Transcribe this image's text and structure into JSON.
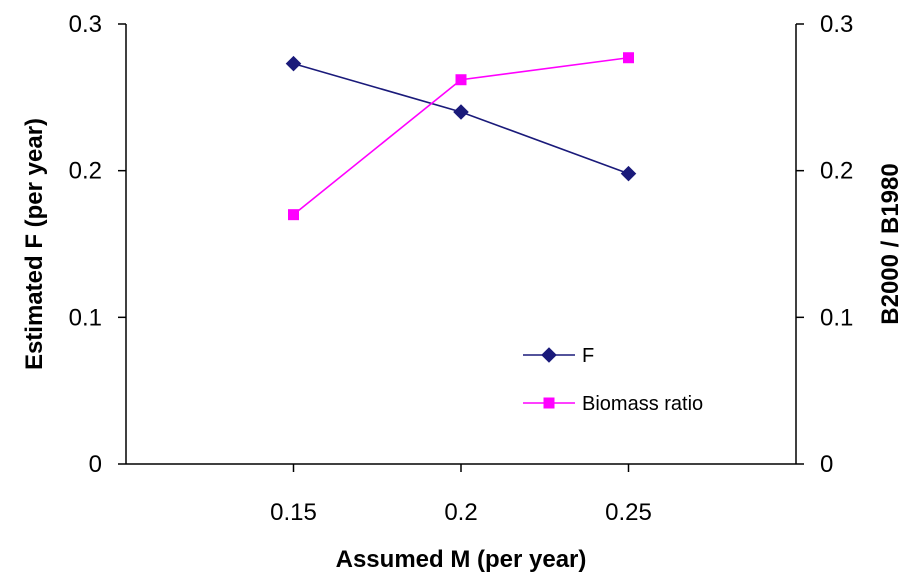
{
  "chart_data": {
    "type": "line",
    "xlabel": "Assumed M (per year)",
    "ylabel": "Estimated F (per year)",
    "y2label": "B2000 / B1980",
    "x": [
      0.15,
      0.2,
      0.25
    ],
    "x_ticks": [
      "0.15",
      "0.2",
      "0.25"
    ],
    "xlim": [
      0.1,
      0.3
    ],
    "ylim": [
      0,
      0.3
    ],
    "y_ticks": [
      "0",
      "0.1",
      "0.2",
      "0.3"
    ],
    "y2lim": [
      0,
      0.3
    ],
    "y2_ticks": [
      "0",
      "0.1",
      "0.2",
      "0.3"
    ],
    "grid": false,
    "legend": "lower-right",
    "series": [
      {
        "name": "F",
        "axis": "left",
        "values": [
          0.273,
          0.24,
          0.198
        ],
        "color": "#1a1a7a",
        "marker": "diamond"
      },
      {
        "name": "Biomass ratio",
        "axis": "right",
        "values": [
          0.17,
          0.262,
          0.277
        ],
        "color": "#ff00ff",
        "marker": "square"
      }
    ]
  }
}
